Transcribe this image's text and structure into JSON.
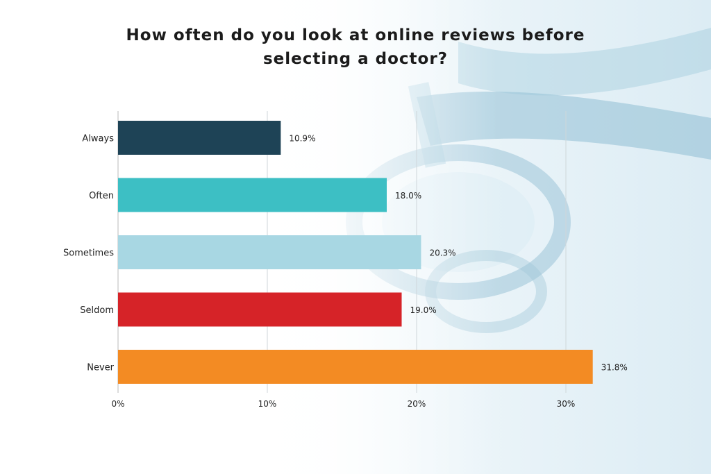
{
  "chart_data": {
    "type": "bar",
    "orientation": "horizontal",
    "title_lines": [
      "How often do you look at online reviews before",
      "selecting a doctor?"
    ],
    "categories": [
      "Always",
      "Often",
      "Sometimes",
      "Seldom",
      "Never"
    ],
    "values": [
      10.9,
      18.0,
      20.3,
      19.0,
      31.8
    ],
    "value_labels": [
      "10.9%",
      "18.0%",
      "20.3%",
      "19.0%",
      "31.8%"
    ],
    "colors": [
      "#1e4356",
      "#3dbfc4",
      "#a8d7e3",
      "#d62328",
      "#f38b23"
    ],
    "xlim": [
      0,
      32
    ],
    "xticks": [
      0,
      10,
      20,
      30
    ],
    "xtick_labels": [
      "0%",
      "10%",
      "20%",
      "30%"
    ],
    "grid": "vertical",
    "xlabel": "",
    "ylabel": ""
  }
}
